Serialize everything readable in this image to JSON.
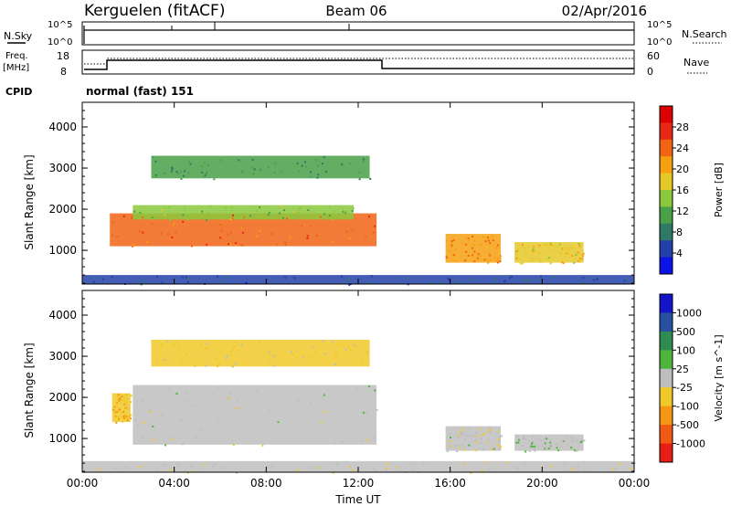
{
  "header": {
    "station": "Kerguelen (fitACF)",
    "beam": "Beam 06",
    "date": "02/Apr/2016"
  },
  "nsky_panel": {
    "left_label": "N.Sky",
    "left_ticks": [
      "10^5",
      "10^0"
    ],
    "right_label": "N.Search",
    "right_ticks": [
      "10^5",
      "10^0"
    ]
  },
  "freq_panel": {
    "left_label_line1": "Freq.",
    "left_label_line2": "[MHz]",
    "left_ticks": [
      "18",
      "8"
    ],
    "right_label": "Nave",
    "right_ticks": [
      "60",
      "0"
    ]
  },
  "cpid": {
    "label": "CPID",
    "value": "normal (fast) 151"
  },
  "colors": {
    "power": [
      "#0a14e6",
      "#2341a8",
      "#2e7a64",
      "#48a048",
      "#8cc83c",
      "#e6c828",
      "#f5a010",
      "#f06414",
      "#e62814",
      "#dc0000"
    ],
    "velocity": [
      "#1414c8",
      "#2850a0",
      "#2e8c50",
      "#50b43c",
      "#bebebe",
      "#f0c828",
      "#f59614",
      "#f05a14",
      "#e61e14"
    ]
  },
  "chart_data": [
    {
      "type": "heatmap",
      "title": "",
      "xlabel": "",
      "ylabel": "Slant Range [km]",
      "x_ticks": [
        "00:00",
        "04:00",
        "08:00",
        "12:00",
        "16:00",
        "20:00",
        "00:00"
      ],
      "y_ticks": [
        "1000",
        "2000",
        "3000",
        "4000"
      ],
      "xlim": [
        0,
        24
      ],
      "ylim": [
        180,
        4600
      ],
      "colorbar": {
        "label": "Power [dB]",
        "ticks": [
          "4",
          "8",
          "12",
          "16",
          "20",
          "24",
          "28"
        ],
        "range": [
          0,
          32
        ]
      },
      "regions": [
        {
          "t0": 1.2,
          "t1": 12.8,
          "r0": 1100,
          "r1": 1900,
          "value": 24
        },
        {
          "t0": 2.2,
          "t1": 11.8,
          "r0": 1750,
          "r1": 2100,
          "value": 14
        },
        {
          "t0": 3.0,
          "t1": 12.5,
          "r0": 2750,
          "r1": 3300,
          "value": 10
        },
        {
          "t0": 15.8,
          "t1": 18.2,
          "r0": 700,
          "r1": 1400,
          "value": 22
        },
        {
          "t0": 18.8,
          "t1": 21.8,
          "r0": 700,
          "r1": 1200,
          "value": 18
        },
        {
          "t0": 0,
          "t1": 24,
          "r0": 180,
          "r1": 400,
          "value": 6
        }
      ]
    },
    {
      "type": "heatmap",
      "title": "",
      "xlabel": "Time UT",
      "ylabel": "Slant Range [km]",
      "x_ticks": [
        "00:00",
        "04:00",
        "08:00",
        "12:00",
        "16:00",
        "20:00",
        "00:00"
      ],
      "y_ticks": [
        "1000",
        "2000",
        "3000",
        "4000"
      ],
      "xlim": [
        0,
        24
      ],
      "ylim": [
        180,
        4600
      ],
      "colorbar": {
        "label": "Velocity [m s^-1]",
        "ticks": [
          "1000",
          "500",
          "100",
          "25",
          "-25",
          "-100",
          "-500",
          "-1000"
        ],
        "range": [
          -1000,
          1000
        ]
      },
      "regions": [
        {
          "t0": 2.2,
          "t1": 12.8,
          "r0": 850,
          "r1": 2300,
          "value": 0
        },
        {
          "t0": 3.0,
          "t1": 12.5,
          "r0": 2750,
          "r1": 3400,
          "value": -150
        },
        {
          "t0": 1.3,
          "t1": 2.1,
          "r0": 1400,
          "r1": 2100,
          "value": -300
        },
        {
          "t0": 15.8,
          "t1": 18.2,
          "r0": 700,
          "r1": 1300,
          "value": -50
        },
        {
          "t0": 18.8,
          "t1": 21.8,
          "r0": 700,
          "r1": 1100,
          "value": 80
        },
        {
          "t0": 0,
          "t1": 24,
          "r0": 180,
          "r1": 450,
          "value": -80
        }
      ]
    }
  ]
}
